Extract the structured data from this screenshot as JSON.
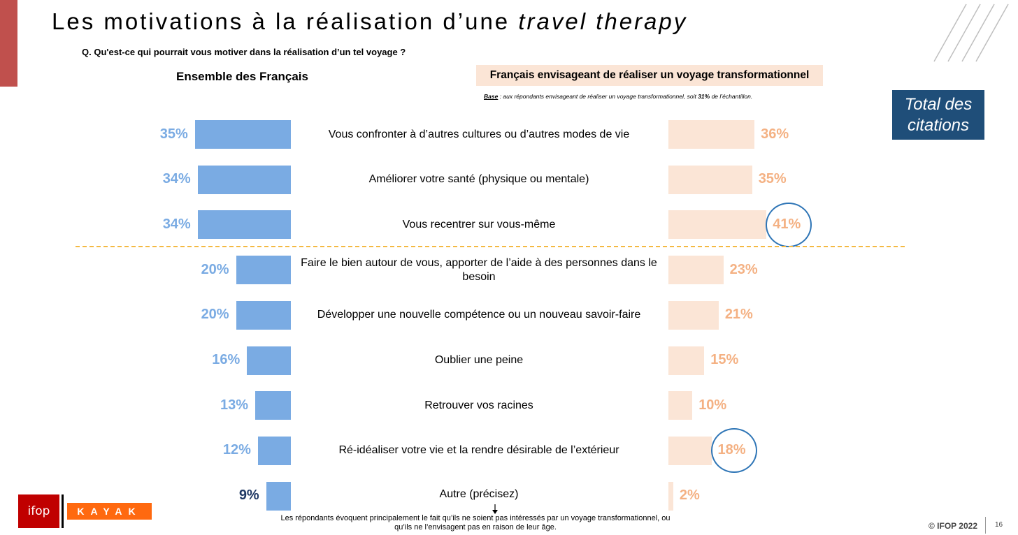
{
  "header": {
    "title_main": "Les motivations à la réalisation d’une ",
    "title_italic": "travel therapy",
    "question": "Q. Qu'est-ce qui pourrait vous motiver dans la réalisation d’un tel voyage ?"
  },
  "left_heading": "Ensemble des Français",
  "right_heading": "Français envisageant de réaliser un voyage transformationnel",
  "base_note": {
    "label": "Base",
    "text_before": " : aux répondants envisageant de réaliser un voyage transformationnel, soit ",
    "bold": "31%",
    "text_after": " de l’échantillon."
  },
  "total_box": "Total des citations",
  "bottom_note": "Les répondants évoquent principalement le fait qu’ils ne soient pas intéressés par un voyage transformationnel, ou qu’ils ne l’envisagent pas en raison de leur âge.",
  "footer": {
    "copyright": "© IFOP 2022",
    "page": "16",
    "ifop_logo": "ifop",
    "kayak_logo": "KAYAK"
  },
  "colors": {
    "left_bar": "#7aabe3",
    "right_bar": "#fbe5d6",
    "right_text": "#f4b183",
    "dark_value": "#1f3864",
    "highlight": "#2e75b6"
  },
  "chart_data": {
    "type": "bar",
    "categories": [
      "Vous confronter à d’autres cultures ou d’autres modes de vie",
      "Améliorer votre santé (physique ou mentale)",
      "Vous recentrer sur vous-même",
      "Faire le bien autour de vous, apporter de l’aide à des personnes dans le besoin",
      "Développer une nouvelle compétence ou un nouveau savoir-faire",
      "Oublier une peine",
      "Retrouver vos racines",
      "Ré-idéaliser votre vie et la rendre désirable de l’extérieur",
      "Autre (précisez)"
    ],
    "series": [
      {
        "name": "Ensemble des Français",
        "values": [
          35,
          34,
          34,
          20,
          20,
          16,
          13,
          12,
          9
        ],
        "labels": [
          "35%",
          "34%",
          "34%",
          "20%",
          "20%",
          "16%",
          "13%",
          "12%",
          "9%"
        ]
      },
      {
        "name": "Français envisageant de réaliser un voyage transformationnel",
        "values": [
          36,
          35,
          41,
          23,
          21,
          15,
          10,
          18,
          2
        ],
        "labels": [
          "36%",
          "35%",
          "41%",
          "23%",
          "21%",
          "15%",
          "10%",
          "18%",
          "2%"
        ]
      }
    ],
    "highlighted_right": [
      2,
      7
    ],
    "dark_left_label": [
      8
    ],
    "separator_after": 2,
    "unit": "%"
  }
}
